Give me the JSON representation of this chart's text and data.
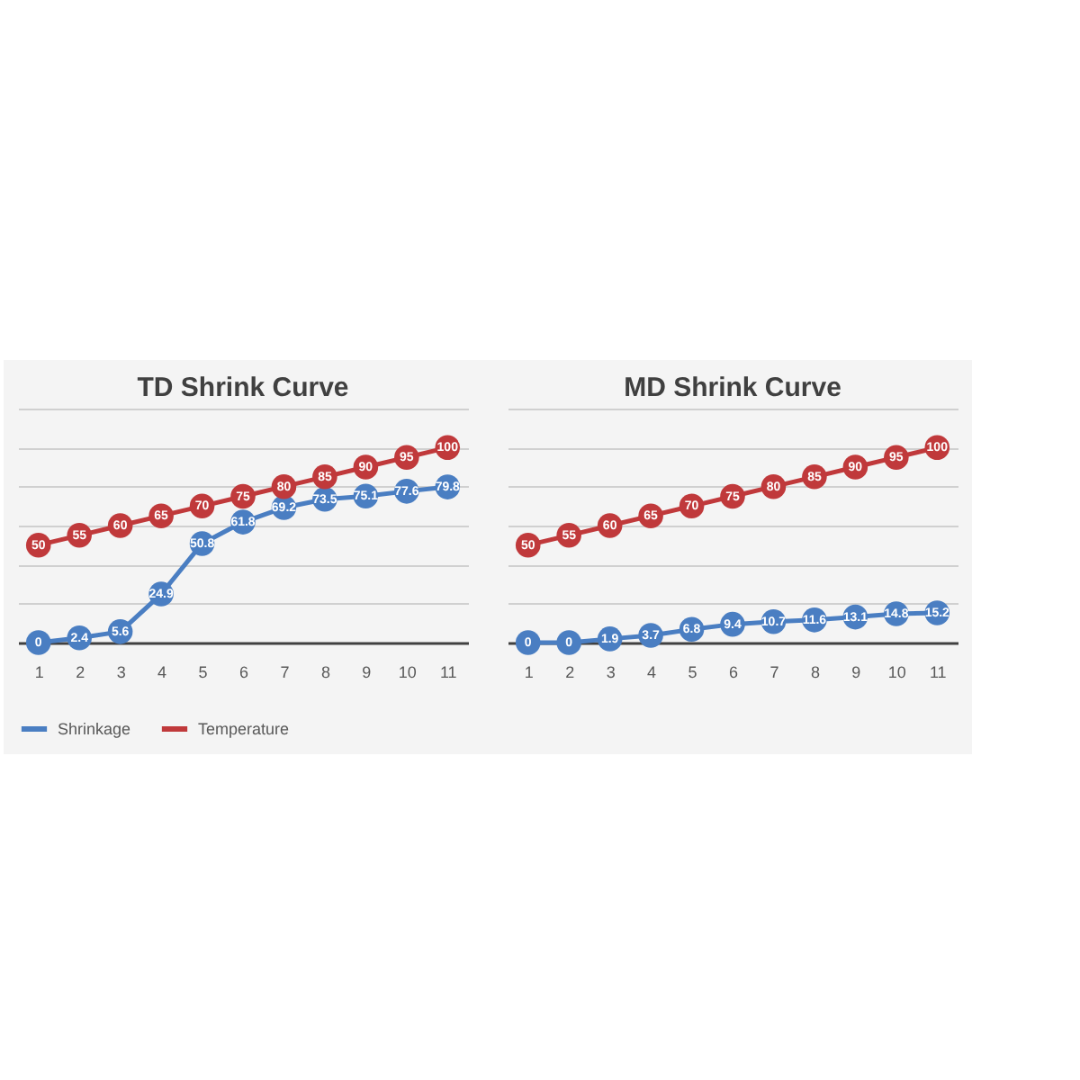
{
  "chart_data": [
    {
      "type": "line",
      "title": "TD Shrink Curve",
      "categories": [
        "1",
        "2",
        "3",
        "4",
        "5",
        "6",
        "7",
        "8",
        "9",
        "10",
        "11"
      ],
      "series": [
        {
          "name": "Shrinkage",
          "color": "#4a7ec2",
          "values": [
            0,
            2.4,
            5.6,
            24.9,
            50.8,
            61.8,
            69.2,
            73.5,
            75.1,
            77.6,
            79.8
          ]
        },
        {
          "name": "Temperature",
          "color": "#c0393b",
          "values": [
            50,
            55,
            60,
            65,
            70,
            75,
            80,
            85,
            90,
            95,
            100
          ]
        }
      ],
      "ylim": [
        0,
        120
      ],
      "yticks": [
        {
          "value": 0,
          "label": null
        },
        {
          "value": 20,
          "label": null
        },
        {
          "value": 40,
          "label": null
        },
        {
          "value": 60,
          "label": null
        },
        {
          "value": 80,
          "label": null
        },
        {
          "value": 100,
          "label": null
        },
        {
          "value": 120,
          "label": null
        }
      ],
      "grid": "y",
      "tick_labels": "x",
      "legend": "bottom",
      "marker": "circle",
      "line_style": "solid",
      "data_labels": true
    },
    {
      "type": "line",
      "title": "MD Shrink Curve",
      "categories": [
        "1",
        "2",
        "3",
        "4",
        "5",
        "6",
        "7",
        "8",
        "9",
        "10",
        "11"
      ],
      "series": [
        {
          "name": "Shrinkage",
          "color": "#4a7ec2",
          "values": [
            0,
            0,
            1.9,
            3.7,
            6.8,
            9.4,
            10.7,
            11.6,
            13.1,
            14.8,
            15.2
          ]
        },
        {
          "name": "Temperature",
          "color": "#c0393b",
          "values": [
            50,
            55,
            60,
            65,
            70,
            75,
            80,
            85,
            90,
            95,
            100
          ]
        }
      ],
      "ylim": [
        0,
        120
      ],
      "yticks": [
        {
          "value": 0,
          "label": null
        },
        {
          "value": 20,
          "label": null
        },
        {
          "value": 40,
          "label": null
        },
        {
          "value": 60,
          "label": null
        },
        {
          "value": 80,
          "label": null
        },
        {
          "value": 100,
          "label": null
        },
        {
          "value": 120,
          "label": null
        }
      ],
      "grid": "y",
      "tick_labels": "x",
      "legend": "bottom",
      "marker": "circle",
      "line_style": "solid",
      "data_labels": true
    }
  ]
}
